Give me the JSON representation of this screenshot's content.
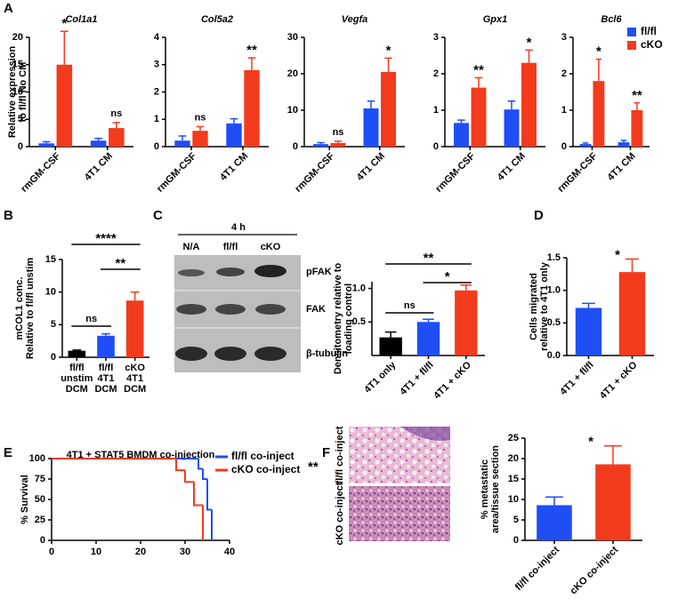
{
  "panel_labels": [
    "A",
    "B",
    "C",
    "D",
    "E",
    "F"
  ],
  "chart_data": [
    {
      "type": "bar",
      "title": "Col1a1",
      "y_label": [
        "Relative expression",
        "to fl/fl No CM"
      ],
      "categories": [
        "rmGM-CSF",
        "4T1 CM"
      ],
      "series": [
        {
          "color": "#1f4ef5",
          "values": [
            0.6,
            1.1
          ],
          "errors": [
            0.3,
            0.4
          ]
        },
        {
          "color": "#f23b1c",
          "values": [
            15,
            3.4
          ],
          "errors": [
            6.1,
            1
          ]
        }
      ],
      "annotations": [
        "*",
        "ns"
      ],
      "ylim": [
        0,
        20
      ],
      "yticks": [
        0,
        5,
        10,
        15,
        20
      ]
    },
    {
      "type": "bar",
      "title": "Col5a2",
      "categories": [
        "rmGM-CSF",
        "4T1 CM"
      ],
      "series": [
        {
          "color": "#1f4ef5",
          "values": [
            0.22,
            0.85
          ],
          "errors": [
            0.17,
            0.17
          ]
        },
        {
          "color": "#f23b1c",
          "values": [
            0.58,
            2.8
          ],
          "errors": [
            0.15,
            0.45
          ]
        }
      ],
      "annotations": [
        "ns",
        "**"
      ],
      "ylim": [
        0,
        4
      ],
      "yticks": [
        0,
        1,
        2,
        3,
        4
      ]
    },
    {
      "type": "bar",
      "title": "Vegfa",
      "categories": [
        "rmGM-CSF",
        "4T1 CM"
      ],
      "series": [
        {
          "color": "#1f4ef5",
          "values": [
            0.7,
            10.5
          ],
          "errors": [
            0.4,
            2
          ]
        },
        {
          "color": "#f23b1c",
          "values": [
            1,
            20.5
          ],
          "errors": [
            0.5,
            3.8
          ]
        }
      ],
      "annotations": [
        "ns",
        "*"
      ],
      "ylim": [
        0,
        30
      ],
      "yticks": [
        0,
        10,
        20,
        30
      ]
    },
    {
      "type": "bar",
      "title": "Gpx1",
      "categories": [
        "rmGM-CSF",
        "4T1 CM"
      ],
      "series": [
        {
          "color": "#1f4ef5",
          "values": [
            0.65,
            1.02
          ],
          "errors": [
            0.08,
            0.23
          ]
        },
        {
          "color": "#f23b1c",
          "values": [
            1.62,
            2.3
          ],
          "errors": [
            0.27,
            0.35
          ]
        }
      ],
      "annotations": [
        "**",
        "*"
      ],
      "ylim": [
        0,
        3
      ],
      "yticks": [
        0,
        1,
        2,
        3
      ]
    },
    {
      "type": "bar",
      "title": "Bcl6",
      "categories": [
        "rmGM-CSF",
        "4T1 CM"
      ],
      "series": [
        {
          "name": "fl/fl",
          "color": "#1f4ef5",
          "values": [
            0.07,
            0.12
          ],
          "errors": [
            0.03,
            0.05
          ]
        },
        {
          "name": "cKO",
          "color": "#f23b1c",
          "values": [
            1.8,
            1.0
          ],
          "errors": [
            0.6,
            0.2
          ]
        }
      ],
      "annotations": [
        "*",
        "**"
      ],
      "ylim": [
        0,
        3
      ],
      "yticks": [
        0,
        1,
        2,
        3
      ],
      "legend": "upper right"
    },
    {
      "type": "bar",
      "y_label": [
        "mCOL1 conc.",
        "Relative to fl/fl unstim"
      ],
      "categories": [
        [
          "fl/fl",
          "unstim",
          "DCM"
        ],
        [
          "fl/fl",
          "4T1",
          "DCM"
        ],
        [
          "cKO",
          "4T1",
          "DCM"
        ]
      ],
      "values": [
        1,
        3.3,
        8.7
      ],
      "errors": [
        0.1,
        0.3,
        1.3
      ],
      "colors": [
        "#000000",
        "#1f4ef5",
        "#f23b1c"
      ],
      "brackets": [
        "ns",
        "****",
        "**"
      ],
      "ylim": [
        0,
        15
      ],
      "yticks": [
        0,
        5,
        10,
        15
      ]
    },
    {
      "type": "bar",
      "y_label": [
        "Densitometry relative to",
        "loading control"
      ],
      "categories": [
        "4T1 only",
        "4T1 + fl/fl",
        "4T1 + cKO"
      ],
      "values": [
        0.27,
        0.5,
        0.97
      ],
      "errors": [
        0.08,
        0.04,
        0.08
      ],
      "colors": [
        "#000000",
        "#1f4ef5",
        "#f23b1c"
      ],
      "brackets": [
        "ns",
        "**",
        "*"
      ],
      "ylim": [
        0,
        1.1
      ],
      "yticks": [
        0.5,
        {
          "value": 1,
          "label": "1.0"
        }
      ]
    },
    {
      "type": "bar",
      "y_label": [
        "Cells migrated",
        "relative to 4T1 only"
      ],
      "categories": [
        "4T1 + fl/fl",
        "4T1 + cKO"
      ],
      "values": [
        0.73,
        1.28
      ],
      "errors": [
        0.07,
        0.2
      ],
      "colors": [
        "#1f4ef5",
        "#f23b1c"
      ],
      "significance": "*",
      "ylim": [
        0,
        1.5
      ],
      "yticks": [
        {
          "value": 0,
          "label": "0.0"
        },
        0.5,
        {
          "value": 1,
          "label": "1.0"
        },
        1.5
      ]
    },
    {
      "type": "survival",
      "title": "4T1 + STAT5 BMDM co-injection",
      "y_label": "% Survival",
      "series": [
        {
          "name": "fl/fl co-inject",
          "color": "#1f4ef5",
          "x": [
            0,
            33,
            34,
            35,
            36
          ],
          "y": [
            100,
            87.5,
            75,
            37.5,
            0
          ]
        },
        {
          "name": "cKO co-inject",
          "color": "#f23b1c",
          "x": [
            0,
            28,
            30,
            32,
            34
          ],
          "y": [
            100,
            85.7,
            71.4,
            42.9,
            0
          ]
        }
      ],
      "significance": "**",
      "xlim": [
        0,
        40
      ],
      "xticks": [
        0,
        10,
        20,
        30,
        40
      ],
      "ylim": [
        0,
        100
      ],
      "yticks": [
        0,
        25,
        50,
        75,
        100
      ],
      "legend": "upper right"
    },
    {
      "type": "bar",
      "y_label": [
        "% metastatic",
        "area/tissue section"
      ],
      "categories": [
        "fl/fl co-inject",
        "cKO co-inject"
      ],
      "values": [
        8.6,
        18.6
      ],
      "errors": [
        2,
        4.5
      ],
      "colors": [
        "#1f4ef5",
        "#f23b1c"
      ],
      "significance": "*",
      "ylim": [
        0,
        25
      ],
      "yticks": [
        0,
        5,
        10,
        15,
        20,
        25
      ]
    }
  ],
  "blot": {
    "time": "4 h",
    "lanes": [
      "N/A",
      "fl/fl",
      "cKO"
    ],
    "proteins": [
      "pFAK",
      "FAK",
      "β-tubulin"
    ]
  },
  "histology": {
    "rows": [
      "fl/fl co-inject",
      "cKO co-inject"
    ]
  }
}
